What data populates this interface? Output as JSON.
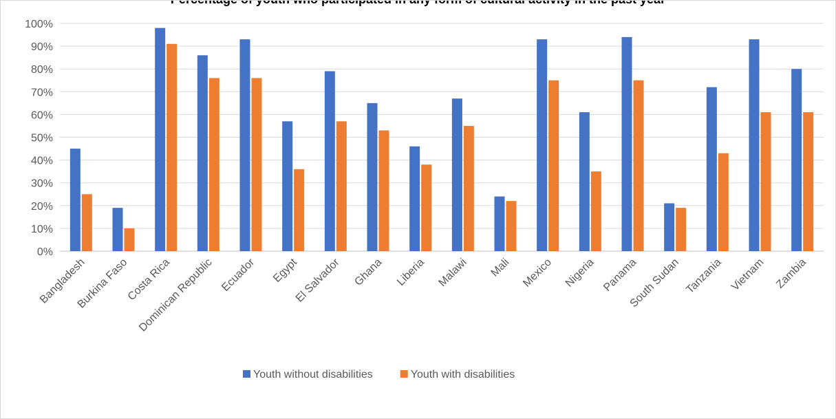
{
  "chart_data": {
    "type": "bar",
    "title": "Percentage of youth who participated in any form of cultural activity in the past year",
    "xlabel": "",
    "ylabel": "",
    "ylim": [
      0,
      100
    ],
    "y_unit": "%",
    "y_ticks": [
      "0%",
      "10%",
      "20%",
      "30%",
      "40%",
      "50%",
      "60%",
      "70%",
      "80%",
      "90%",
      "100%"
    ],
    "grid": true,
    "legend_position": "bottom",
    "categories": [
      "Bangladesh",
      "Burkina Faso",
      "Costa Rica",
      "Dominican Republic",
      "Ecuador",
      "Egypt",
      "El Salvador",
      "Ghana",
      "Liberia",
      "Malawi",
      "Mali",
      "Mexico",
      "Nigeria",
      "Panama",
      "South Sudan",
      "Tanzania",
      "Vietnam",
      "Zambia"
    ],
    "series": [
      {
        "name": "Youth without disabilities",
        "color": "#4472c4",
        "values": [
          45,
          19,
          98,
          86,
          93,
          57,
          79,
          65,
          46,
          67,
          24,
          93,
          61,
          94,
          21,
          72,
          93,
          80
        ]
      },
      {
        "name": "Youth with disabilities",
        "color": "#ed7d31",
        "values": [
          25,
          10,
          91,
          76,
          76,
          36,
          57,
          53,
          38,
          55,
          22,
          75,
          35,
          75,
          19,
          43,
          61,
          61
        ]
      }
    ]
  }
}
